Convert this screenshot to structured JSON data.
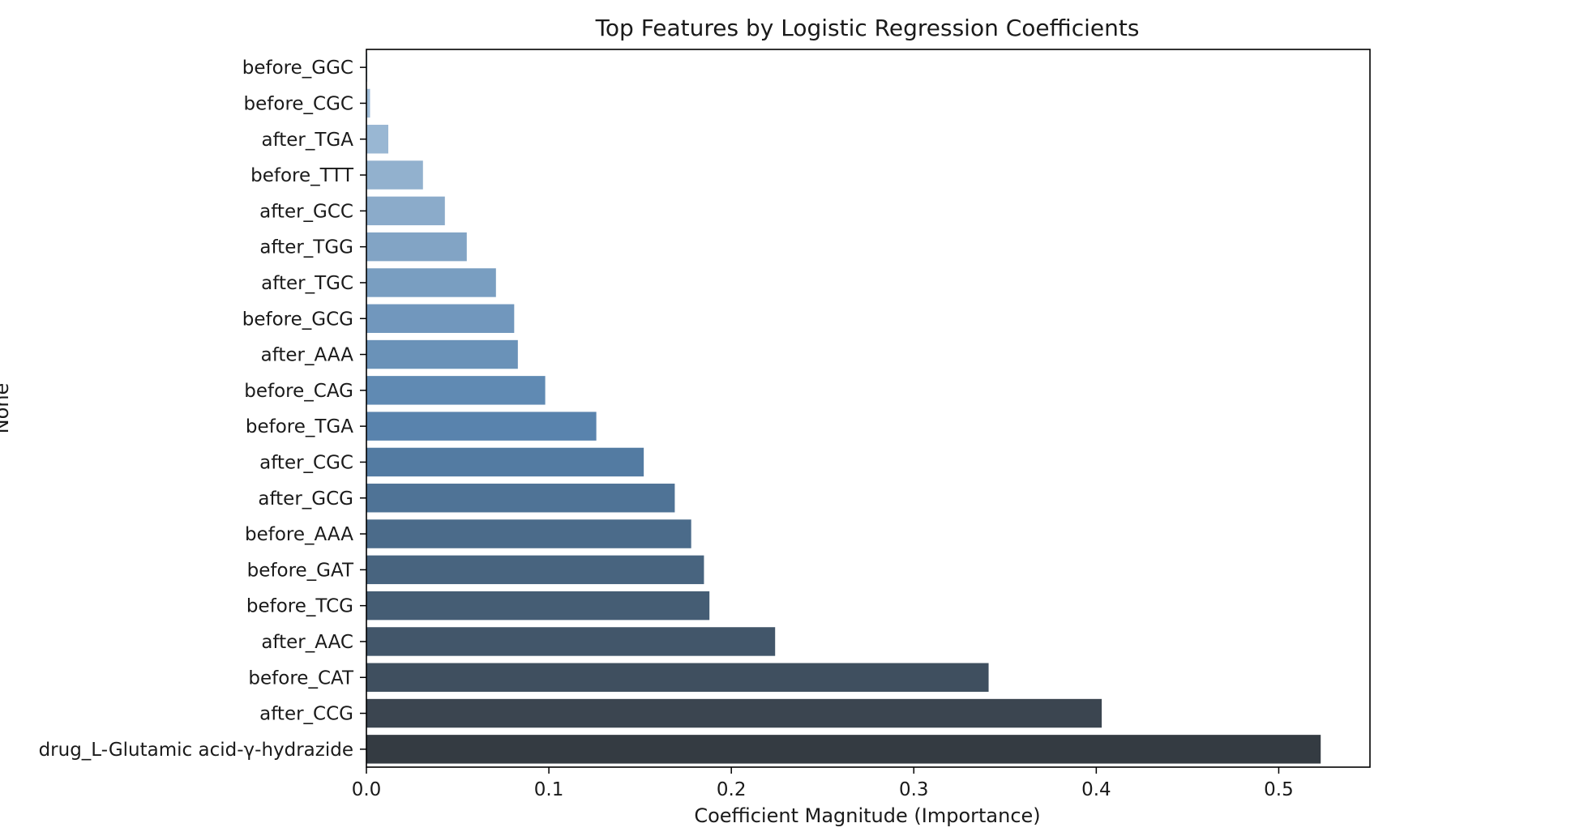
{
  "chart_data": {
    "type": "bar",
    "orientation": "horizontal",
    "title": "Top Features by Logistic Regression Coefficients",
    "xlabel": "Coefficient Magnitude (Importance)",
    "ylabel": "None",
    "xlim": [
      0,
      0.55
    ],
    "x_ticks": [
      0.0,
      0.1,
      0.2,
      0.3,
      0.4,
      0.5
    ],
    "x_tick_labels": [
      "0.0",
      "0.1",
      "0.2",
      "0.3",
      "0.4",
      "0.5"
    ],
    "grid": false,
    "categories": [
      "before_GGC",
      "before_CGC",
      "after_TGA",
      "before_TTT",
      "after_GCC",
      "after_TGG",
      "after_TGC",
      "before_GCG",
      "after_AAA",
      "before_CAG",
      "before_TGA",
      "after_CGC",
      "after_GCG",
      "before_AAA",
      "before_GAT",
      "before_TCG",
      "after_AAC",
      "before_CAT",
      "after_CCG",
      "drug_L-Glutamic acid-γ-hydrazide"
    ],
    "values": [
      0.0005,
      0.002,
      0.012,
      0.031,
      0.043,
      0.055,
      0.071,
      0.081,
      0.083,
      0.098,
      0.126,
      0.152,
      0.169,
      0.178,
      0.185,
      0.188,
      0.224,
      0.341,
      0.403,
      0.523
    ],
    "colors": [
      "#a6c2dc",
      "#a0bdd8",
      "#99b7d3",
      "#92b1ce",
      "#8babca",
      "#82a4c5",
      "#799ec1",
      "#7197bd",
      "#6a92b8",
      "#608ab3",
      "#5983ad",
      "#537ba2",
      "#4f7396",
      "#4b6b8a",
      "#48647f",
      "#455d74",
      "#42566a",
      "#3f4f5f",
      "#3b4550",
      "#343b42"
    ]
  }
}
